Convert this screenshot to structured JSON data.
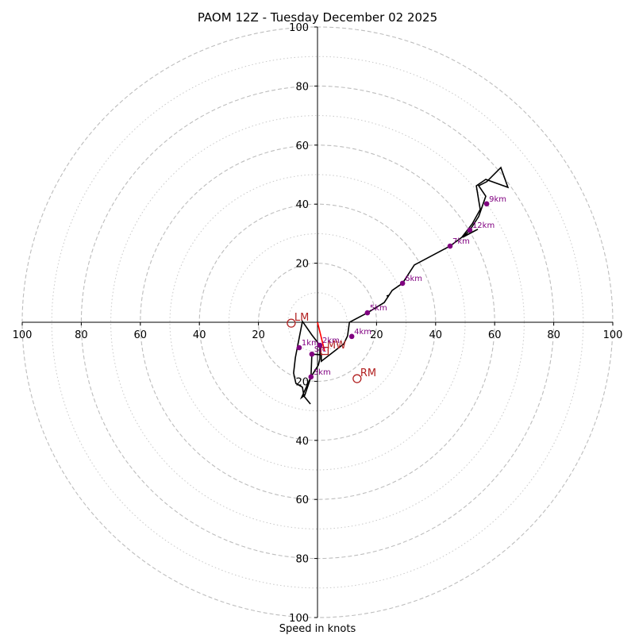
{
  "chart_data": {
    "type": "line",
    "subtype": "hodograph",
    "title": "PAOM 12Z - Tuesday December 02 2025",
    "xlabel": "Speed in knots",
    "ylabel": "",
    "units": "knots",
    "xlim": [
      -100,
      100
    ],
    "ylim": [
      -100,
      100
    ],
    "grid": "polar rings",
    "rings": {
      "dashed": [
        20,
        40,
        60,
        80,
        100
      ],
      "dotted": [
        10,
        30,
        50,
        70,
        90
      ]
    },
    "x_ticks": [
      {
        "value": -100,
        "label": "100"
      },
      {
        "value": -80,
        "label": "80"
      },
      {
        "value": -60,
        "label": "60"
      },
      {
        "value": -40,
        "label": "40"
      },
      {
        "value": -20,
        "label": "20"
      },
      {
        "value": 0,
        "label": "0"
      },
      {
        "value": 20,
        "label": "20"
      },
      {
        "value": 40,
        "label": "40"
      },
      {
        "value": 60,
        "label": "60"
      },
      {
        "value": 80,
        "label": "80"
      },
      {
        "value": 100,
        "label": "100"
      }
    ],
    "y_ticks": [
      {
        "value": 100,
        "label": "100"
      },
      {
        "value": 80,
        "label": "80"
      },
      {
        "value": 60,
        "label": "60"
      },
      {
        "value": 40,
        "label": "40"
      },
      {
        "value": 20,
        "label": "20"
      },
      {
        "value": -20,
        "label": "20"
      },
      {
        "value": -40,
        "label": "40"
      },
      {
        "value": -60,
        "label": "60"
      },
      {
        "value": -80,
        "label": "80"
      },
      {
        "value": -100,
        "label": "100"
      }
    ],
    "hodograph_trace": {
      "name": "wind profile",
      "color": "#000000",
      "points": [
        [
          -2.4,
          -27.7
        ],
        [
          -4.6,
          -25.0
        ],
        [
          -5.1,
          -22.0
        ],
        [
          -7.3,
          -20.7
        ],
        [
          -8.1,
          -17.2
        ],
        [
          -7.5,
          -12.0
        ],
        [
          -5.1,
          0.3
        ],
        [
          -1.9,
          -4.3
        ],
        [
          0.8,
          -7.8
        ],
        [
          0.8,
          -12.4
        ],
        [
          0.3,
          -14.5
        ],
        [
          -2.2,
          -18.5
        ],
        [
          -4.3,
          -23.1
        ],
        [
          -5.4,
          -25.5
        ],
        [
          -4.3,
          -24.7
        ],
        [
          -2.2,
          -18.5
        ],
        [
          -1.9,
          -10.8
        ],
        [
          1.1,
          -11.0
        ],
        [
          1.3,
          -10.5
        ],
        [
          1.3,
          -13.2
        ],
        [
          8.9,
          -7.3
        ],
        [
          10.2,
          -4.6
        ],
        [
          10.8,
          0.0
        ],
        [
          16.9,
          3.2
        ],
        [
          22.6,
          6.7
        ],
        [
          24.2,
          9.1
        ],
        [
          23.4,
          8.9
        ],
        [
          24.2,
          9.1
        ],
        [
          25.3,
          10.8
        ],
        [
          28.8,
          13.2
        ],
        [
          32.8,
          19.4
        ],
        [
          44.9,
          25.8
        ],
        [
          48.9,
          28.8
        ],
        [
          54.3,
          31.5
        ],
        [
          49.2,
          28.8
        ],
        [
          51.6,
          31.2
        ],
        [
          54.6,
          35.8
        ],
        [
          57.0,
          42.7
        ],
        [
          54.6,
          46.2
        ],
        [
          57.3,
          47.6
        ],
        [
          62.1,
          52.4
        ],
        [
          64.5,
          45.7
        ],
        [
          57.0,
          48.4
        ],
        [
          53.8,
          46.2
        ],
        [
          55.1,
          38.2
        ],
        [
          52.4,
          33.3
        ],
        [
          48.9,
          28.8
        ]
      ]
    },
    "height_markers": [
      {
        "label": "Sfc",
        "u": -1.9,
        "v": -10.8
      },
      {
        "label": "1km",
        "u": -6.2,
        "v": -8.6
      },
      {
        "label": "2km",
        "u": 0.8,
        "v": -7.8
      },
      {
        "label": "3km",
        "u": -2.2,
        "v": -18.5
      },
      {
        "label": "4km",
        "u": 11.6,
        "v": -4.8
      },
      {
        "label": "5km",
        "u": 16.9,
        "v": 3.2
      },
      {
        "label": "6km",
        "u": 28.8,
        "v": 13.2
      },
      {
        "label": "7km",
        "u": 44.9,
        "v": 25.8
      },
      {
        "label": "9km",
        "u": 57.3,
        "v": 40.1
      },
      {
        "label": "12km",
        "u": 51.6,
        "v": 31.2
      }
    ],
    "height_marker_color": "#800080",
    "storm_motion": {
      "LM": {
        "label": "LM",
        "u": -8.9,
        "v": -0.3
      },
      "RM": {
        "label": "RM",
        "u": 13.4,
        "v": -19.1
      },
      "MW": {
        "label": "MW",
        "u": 2.4,
        "v": -9.7
      },
      "color": "#b22222",
      "arrow_color": "#ff0000"
    }
  }
}
